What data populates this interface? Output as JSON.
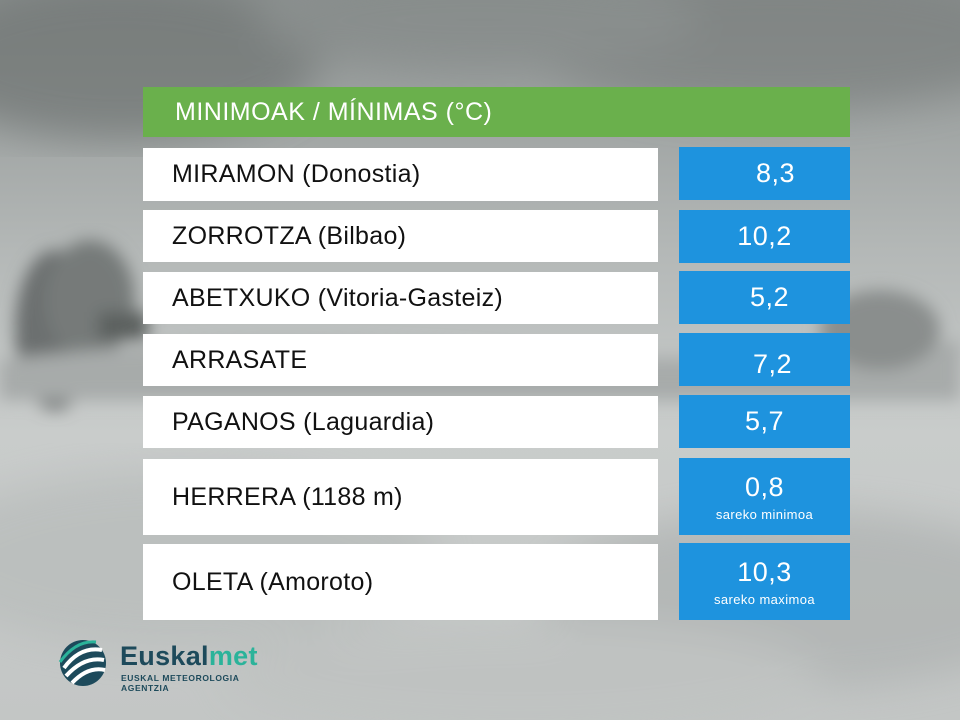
{
  "header": {
    "title": "MINIMOAK / MÍNIMAS (°C)"
  },
  "rows": [
    {
      "label": "MIRAMON (Donostia)",
      "value": "8,3",
      "note": ""
    },
    {
      "label": "ZORROTZA (Bilbao)",
      "value": "10,2",
      "note": ""
    },
    {
      "label": "ABETXUKO (Vitoria-Gasteiz)",
      "value": "5,2",
      "note": ""
    },
    {
      "label": "ARRASATE",
      "value": "7,2",
      "note": ""
    },
    {
      "label": "PAGANOS (Laguardia)",
      "value": "5,7",
      "note": ""
    },
    {
      "label": "HERRERA (1188 m)",
      "value": "0,8",
      "note": "sareko minimoa"
    },
    {
      "label": "OLETA (Amoroto)",
      "value": "10,3",
      "note": "sareko maximoa"
    }
  ],
  "logo": {
    "name_part1": "Euskal",
    "name_part2": "met",
    "subtitle": "EUSKAL METEOROLOGIA AGENTZIA"
  },
  "colors": {
    "header": "#6ab04c",
    "value_box": "#1e93de",
    "label_box": "#ffffff",
    "brand_dark": "#1d4a5b",
    "brand_accent": "#2bb39a"
  }
}
